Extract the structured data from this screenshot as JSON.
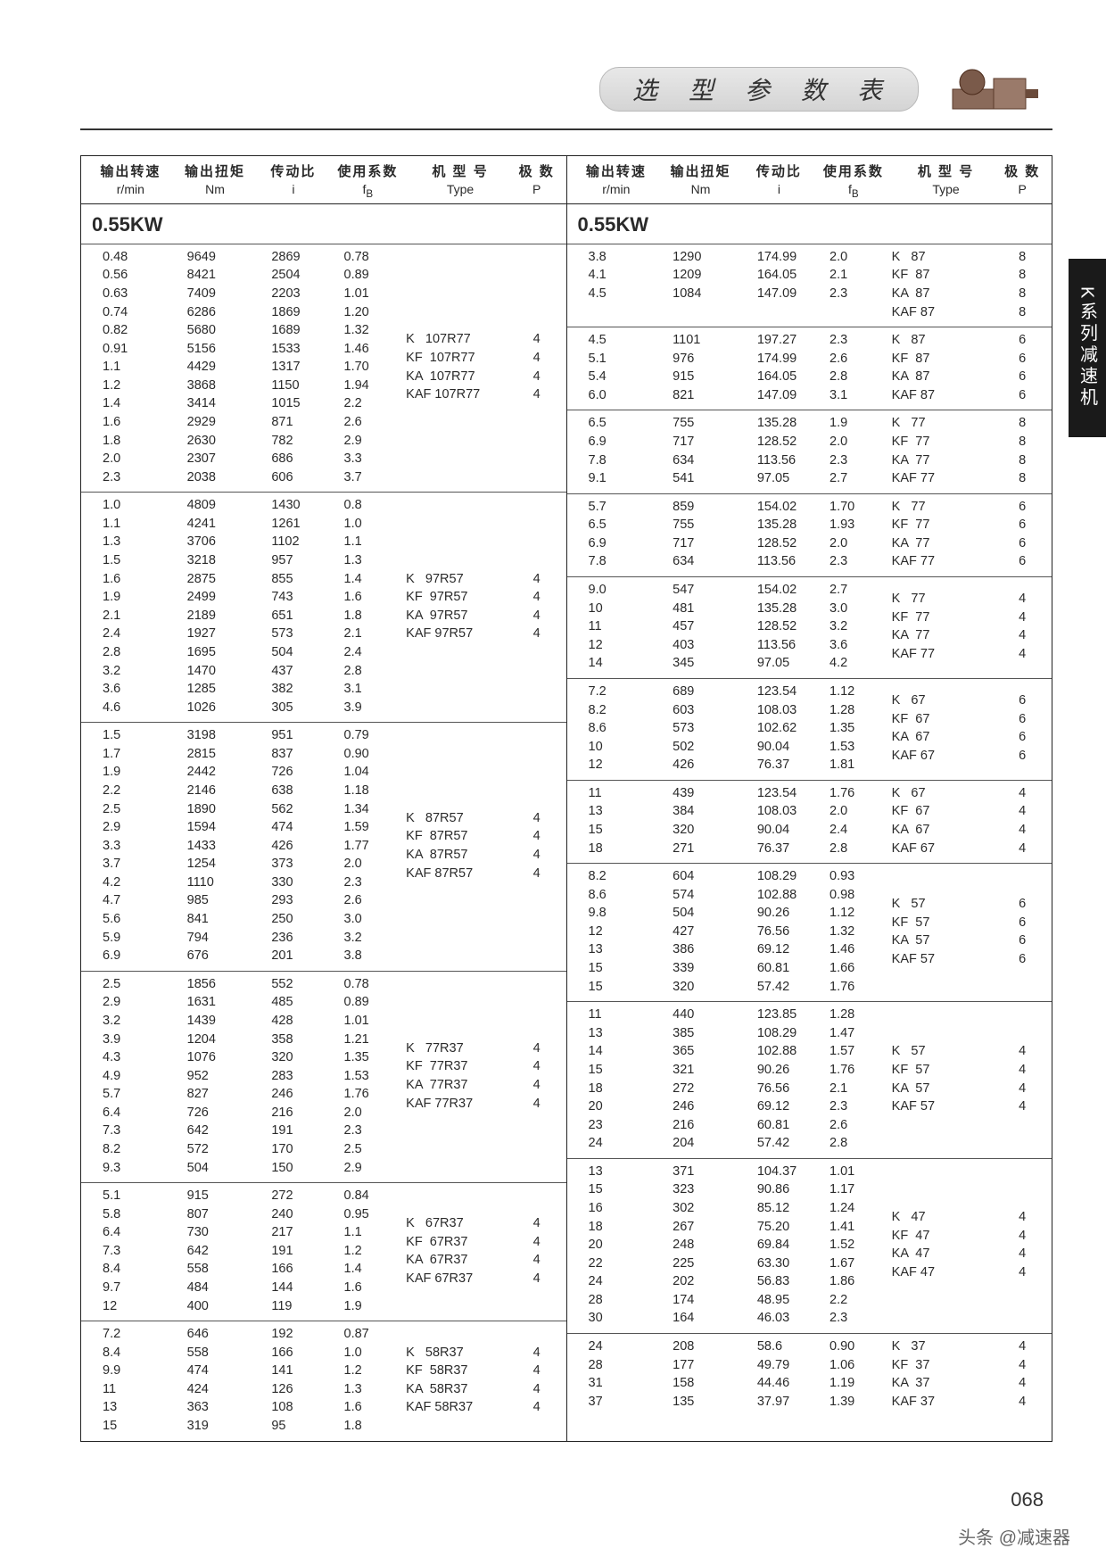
{
  "page_title": "选 型 参 数 表",
  "side_tab": "K系列减速机",
  "page_number": "068",
  "footer": "头条 @减速器",
  "power_label": "0.55KW",
  "headers": {
    "zh": [
      "输出转速",
      "输出扭矩",
      "传动比",
      "使用系数",
      "机 型 号",
      "极 数"
    ],
    "en": [
      "r/min",
      "Nm",
      "i",
      "f_B",
      "Type",
      "P"
    ]
  },
  "colors": {
    "border": "#222222",
    "text": "#2a2a2a",
    "pill_bg_top": "#e8e8e8",
    "pill_bg_bot": "#d4d4d4",
    "side_tab_bg": "#1a1a1a"
  },
  "left_blocks": [
    {
      "rows": [
        [
          "0.48",
          "9649",
          "2869",
          "0.78"
        ],
        [
          "0.56",
          "8421",
          "2504",
          "0.89"
        ],
        [
          "0.63",
          "7409",
          "2203",
          "1.01"
        ],
        [
          "0.74",
          "6286",
          "1869",
          "1.20"
        ],
        [
          "0.82",
          "5680",
          "1689",
          "1.32"
        ],
        [
          "0.91",
          "5156",
          "1533",
          "1.46"
        ],
        [
          "1.1",
          "4429",
          "1317",
          "1.70"
        ],
        [
          "1.2",
          "3868",
          "1150",
          "1.94"
        ],
        [
          "1.4",
          "3414",
          "1015",
          "2.2"
        ],
        [
          "1.6",
          "2929",
          "871",
          "2.6"
        ],
        [
          "1.8",
          "2630",
          "782",
          "2.9"
        ],
        [
          "2.0",
          "2307",
          "686",
          "3.3"
        ],
        [
          "2.3",
          "2038",
          "606",
          "3.7"
        ]
      ],
      "types": [
        "K   107R77",
        "KF  107R77",
        "KA  107R77",
        "KAF 107R77"
      ],
      "poles": [
        "4",
        "4",
        "4",
        "4"
      ]
    },
    {
      "rows": [
        [
          "1.0",
          "4809",
          "1430",
          "0.8"
        ],
        [
          "1.1",
          "4241",
          "1261",
          "1.0"
        ],
        [
          "1.3",
          "3706",
          "1102",
          "1.1"
        ],
        [
          "1.5",
          "3218",
          "957",
          "1.3"
        ],
        [
          "1.6",
          "2875",
          "855",
          "1.4"
        ],
        [
          "1.9",
          "2499",
          "743",
          "1.6"
        ],
        [
          "2.1",
          "2189",
          "651",
          "1.8"
        ],
        [
          "2.4",
          "1927",
          "573",
          "2.1"
        ],
        [
          "2.8",
          "1695",
          "504",
          "2.4"
        ],
        [
          "3.2",
          "1470",
          "437",
          "2.8"
        ],
        [
          "3.6",
          "1285",
          "382",
          "3.1"
        ],
        [
          "4.6",
          "1026",
          "305",
          "3.9"
        ]
      ],
      "types": [
        "K   97R57",
        "KF  97R57",
        "KA  97R57",
        "KAF 97R57"
      ],
      "poles": [
        "4",
        "4",
        "4",
        "4"
      ]
    },
    {
      "rows": [
        [
          "1.5",
          "3198",
          "951",
          "0.79"
        ],
        [
          "1.7",
          "2815",
          "837",
          "0.90"
        ],
        [
          "1.9",
          "2442",
          "726",
          "1.04"
        ],
        [
          "2.2",
          "2146",
          "638",
          "1.18"
        ],
        [
          "2.5",
          "1890",
          "562",
          "1.34"
        ],
        [
          "2.9",
          "1594",
          "474",
          "1.59"
        ],
        [
          "3.3",
          "1433",
          "426",
          "1.77"
        ],
        [
          "3.7",
          "1254",
          "373",
          "2.0"
        ],
        [
          "4.2",
          "1110",
          "330",
          "2.3"
        ],
        [
          "4.7",
          "985",
          "293",
          "2.6"
        ],
        [
          "5.6",
          "841",
          "250",
          "3.0"
        ],
        [
          "5.9",
          "794",
          "236",
          "3.2"
        ],
        [
          "6.9",
          "676",
          "201",
          "3.8"
        ]
      ],
      "types": [
        "K   87R57",
        "KF  87R57",
        "KA  87R57",
        "KAF 87R57"
      ],
      "poles": [
        "4",
        "4",
        "4",
        "4"
      ]
    },
    {
      "rows": [
        [
          "2.5",
          "1856",
          "552",
          "0.78"
        ],
        [
          "2.9",
          "1631",
          "485",
          "0.89"
        ],
        [
          "3.2",
          "1439",
          "428",
          "1.01"
        ],
        [
          "3.9",
          "1204",
          "358",
          "1.21"
        ],
        [
          "4.3",
          "1076",
          "320",
          "1.35"
        ],
        [
          "4.9",
          "952",
          "283",
          "1.53"
        ],
        [
          "5.7",
          "827",
          "246",
          "1.76"
        ],
        [
          "6.4",
          "726",
          "216",
          "2.0"
        ],
        [
          "7.3",
          "642",
          "191",
          "2.3"
        ],
        [
          "8.2",
          "572",
          "170",
          "2.5"
        ],
        [
          "9.3",
          "504",
          "150",
          "2.9"
        ]
      ],
      "types": [
        "K   77R37",
        "KF  77R37",
        "KA  77R37",
        "KAF 77R37"
      ],
      "poles": [
        "4",
        "4",
        "4",
        "4"
      ]
    },
    {
      "rows": [
        [
          "5.1",
          "915",
          "272",
          "0.84"
        ],
        [
          "5.8",
          "807",
          "240",
          "0.95"
        ],
        [
          "6.4",
          "730",
          "217",
          "1.1"
        ],
        [
          "7.3",
          "642",
          "191",
          "1.2"
        ],
        [
          "8.4",
          "558",
          "166",
          "1.4"
        ],
        [
          "9.7",
          "484",
          "144",
          "1.6"
        ],
        [
          "12",
          "400",
          "119",
          "1.9"
        ]
      ],
      "types": [
        "K   67R37",
        "KF  67R37",
        "KA  67R37",
        "KAF 67R37"
      ],
      "poles": [
        "4",
        "4",
        "4",
        "4"
      ]
    },
    {
      "rows": [
        [
          "7.2",
          "646",
          "192",
          "0.87"
        ],
        [
          "8.4",
          "558",
          "166",
          "1.0"
        ],
        [
          "9.9",
          "474",
          "141",
          "1.2"
        ],
        [
          "11",
          "424",
          "126",
          "1.3"
        ],
        [
          "13",
          "363",
          "108",
          "1.6"
        ],
        [
          "15",
          "319",
          "95",
          "1.8"
        ]
      ],
      "types": [
        "K   58R37",
        "KF  58R37",
        "KA  58R37",
        "KAF 58R37"
      ],
      "poles": [
        "4",
        "4",
        "4",
        "4"
      ]
    }
  ],
  "right_blocks": [
    {
      "rows": [
        [
          "3.8",
          "1290",
          "174.99",
          "2.0"
        ],
        [
          "4.1",
          "1209",
          "164.05",
          "2.1"
        ],
        [
          "4.5",
          "1084",
          "147.09",
          "2.3"
        ]
      ],
      "types": [
        "K   87",
        "KF  87",
        "KA  87",
        "KAF 87"
      ],
      "poles": [
        "8",
        "8",
        "8",
        "8"
      ]
    },
    {
      "rows": [
        [
          "4.5",
          "1101",
          "197.27",
          "2.3"
        ],
        [
          "5.1",
          "976",
          "174.99",
          "2.6"
        ],
        [
          "5.4",
          "915",
          "164.05",
          "2.8"
        ],
        [
          "6.0",
          "821",
          "147.09",
          "3.1"
        ]
      ],
      "types": [
        "K   87",
        "KF  87",
        "KA  87",
        "KAF 87"
      ],
      "poles": [
        "6",
        "6",
        "6",
        "6"
      ]
    },
    {
      "rows": [
        [
          "6.5",
          "755",
          "135.28",
          "1.9"
        ],
        [
          "6.9",
          "717",
          "128.52",
          "2.0"
        ],
        [
          "7.8",
          "634",
          "113.56",
          "2.3"
        ],
        [
          "9.1",
          "541",
          "97.05",
          "2.7"
        ]
      ],
      "types": [
        "K   77",
        "KF  77",
        "KA  77",
        "KAF 77"
      ],
      "poles": [
        "8",
        "8",
        "8",
        "8"
      ]
    },
    {
      "rows": [
        [
          "5.7",
          "859",
          "154.02",
          "1.70"
        ],
        [
          "6.5",
          "755",
          "135.28",
          "1.93"
        ],
        [
          "6.9",
          "717",
          "128.52",
          "2.0"
        ],
        [
          "7.8",
          "634",
          "113.56",
          "2.3"
        ]
      ],
      "types": [
        "K   77",
        "KF  77",
        "KA  77",
        "KAF 77"
      ],
      "poles": [
        "6",
        "6",
        "6",
        "6"
      ]
    },
    {
      "rows": [
        [
          "9.0",
          "547",
          "154.02",
          "2.7"
        ],
        [
          "10",
          "481",
          "135.28",
          "3.0"
        ],
        [
          "11",
          "457",
          "128.52",
          "3.2"
        ],
        [
          "12",
          "403",
          "113.56",
          "3.6"
        ],
        [
          "14",
          "345",
          "97.05",
          "4.2"
        ]
      ],
      "types": [
        "K   77",
        "KF  77",
        "KA  77",
        "KAF 77"
      ],
      "poles": [
        "4",
        "4",
        "4",
        "4"
      ]
    },
    {
      "rows": [
        [
          "7.2",
          "689",
          "123.54",
          "1.12"
        ],
        [
          "8.2",
          "603",
          "108.03",
          "1.28"
        ],
        [
          "8.6",
          "573",
          "102.62",
          "1.35"
        ],
        [
          "10",
          "502",
          "90.04",
          "1.53"
        ],
        [
          "12",
          "426",
          "76.37",
          "1.81"
        ]
      ],
      "types": [
        "K   67",
        "KF  67",
        "KA  67",
        "KAF 67"
      ],
      "poles": [
        "6",
        "6",
        "6",
        "6"
      ]
    },
    {
      "rows": [
        [
          "11",
          "439",
          "123.54",
          "1.76"
        ],
        [
          "13",
          "384",
          "108.03",
          "2.0"
        ],
        [
          "15",
          "320",
          "90.04",
          "2.4"
        ],
        [
          "18",
          "271",
          "76.37",
          "2.8"
        ]
      ],
      "types": [
        "K   67",
        "KF  67",
        "KA  67",
        "KAF 67"
      ],
      "poles": [
        "4",
        "4",
        "4",
        "4"
      ]
    },
    {
      "rows": [
        [
          "8.2",
          "604",
          "108.29",
          "0.93"
        ],
        [
          "8.6",
          "574",
          "102.88",
          "0.98"
        ],
        [
          "9.8",
          "504",
          "90.26",
          "1.12"
        ],
        [
          "12",
          "427",
          "76.56",
          "1.32"
        ],
        [
          "13",
          "386",
          "69.12",
          "1.46"
        ],
        [
          "15",
          "339",
          "60.81",
          "1.66"
        ],
        [
          "15",
          "320",
          "57.42",
          "1.76"
        ]
      ],
      "types": [
        "K   57",
        "KF  57",
        "KA  57",
        "KAF 57"
      ],
      "poles": [
        "6",
        "6",
        "6",
        "6"
      ]
    },
    {
      "rows": [
        [
          "11",
          "440",
          "123.85",
          "1.28"
        ],
        [
          "13",
          "385",
          "108.29",
          "1.47"
        ],
        [
          "14",
          "365",
          "102.88",
          "1.57"
        ],
        [
          "15",
          "321",
          "90.26",
          "1.76"
        ],
        [
          "18",
          "272",
          "76.56",
          "2.1"
        ],
        [
          "20",
          "246",
          "69.12",
          "2.3"
        ],
        [
          "23",
          "216",
          "60.81",
          "2.6"
        ],
        [
          "24",
          "204",
          "57.42",
          "2.8"
        ]
      ],
      "types": [
        "K   57",
        "KF  57",
        "KA  57",
        "KAF 57"
      ],
      "poles": [
        "4",
        "4",
        "4",
        "4"
      ]
    },
    {
      "rows": [
        [
          "13",
          "371",
          "104.37",
          "1.01"
        ],
        [
          "15",
          "323",
          "90.86",
          "1.17"
        ],
        [
          "16",
          "302",
          "85.12",
          "1.24"
        ],
        [
          "18",
          "267",
          "75.20",
          "1.41"
        ],
        [
          "20",
          "248",
          "69.84",
          "1.52"
        ],
        [
          "22",
          "225",
          "63.30",
          "1.67"
        ],
        [
          "24",
          "202",
          "56.83",
          "1.86"
        ],
        [
          "28",
          "174",
          "48.95",
          "2.2"
        ],
        [
          "30",
          "164",
          "46.03",
          "2.3"
        ]
      ],
      "types": [
        "K   47",
        "KF  47",
        "KA  47",
        "KAF 47"
      ],
      "poles": [
        "4",
        "4",
        "4",
        "4"
      ]
    },
    {
      "rows": [
        [
          "24",
          "208",
          "58.6",
          "0.90"
        ],
        [
          "28",
          "177",
          "49.79",
          "1.06"
        ],
        [
          "31",
          "158",
          "44.46",
          "1.19"
        ],
        [
          "37",
          "135",
          "37.97",
          "1.39"
        ]
      ],
      "types": [
        "K   37",
        "KF  37",
        "KA  37",
        "KAF 37"
      ],
      "poles": [
        "4",
        "4",
        "4",
        "4"
      ]
    }
  ]
}
